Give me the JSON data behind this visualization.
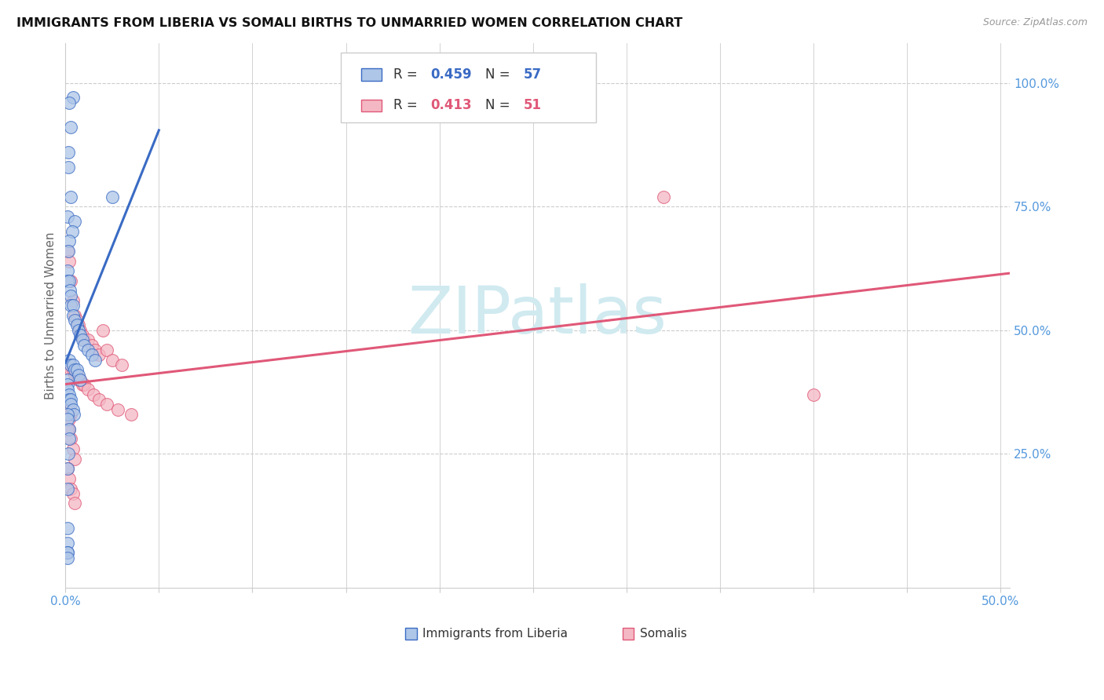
{
  "title": "IMMIGRANTS FROM LIBERIA VS SOMALI BIRTHS TO UNMARRIED WOMEN CORRELATION CHART",
  "source": "Source: ZipAtlas.com",
  "ylabel": "Births to Unmarried Women",
  "legend_label1": "Immigrants from Liberia",
  "legend_label2": "Somalis",
  "color_blue": "#aec6e8",
  "color_pink": "#f4b8c4",
  "color_blue_line": "#3a6bc4",
  "color_pink_line": "#e05878",
  "watermark_text": "ZIPatlas",
  "watermark_color": "#d0eaf0",
  "xlim": [
    0.0,
    0.505
  ],
  "ylim": [
    -0.02,
    1.08
  ],
  "ytick_positions": [
    0.0,
    0.25,
    0.5,
    0.75,
    1.0
  ],
  "ytick_labels_right": [
    "",
    "25.0%",
    "50.0%",
    "75.0%",
    "100.0%"
  ],
  "xtick_positions": [
    0.0,
    0.05,
    0.1,
    0.15,
    0.2,
    0.25,
    0.3,
    0.35,
    0.4,
    0.45,
    0.5
  ],
  "xtick_show": [
    0.0,
    0.5
  ],
  "blue_x": [
    0.004,
    0.002,
    0.003,
    0.0015,
    0.0015,
    0.003,
    0.025,
    0.001,
    0.005,
    0.0035,
    0.002,
    0.0015,
    0.001,
    0.001,
    0.002,
    0.0025,
    0.003,
    0.003,
    0.004,
    0.004,
    0.005,
    0.006,
    0.007,
    0.008,
    0.009,
    0.01,
    0.012,
    0.014,
    0.016,
    0.002,
    0.003,
    0.004,
    0.005,
    0.006,
    0.007,
    0.008,
    0.001,
    0.001,
    0.001,
    0.002,
    0.002,
    0.003,
    0.003,
    0.004,
    0.0045,
    0.001,
    0.001,
    0.002,
    0.002,
    0.0015,
    0.001,
    0.001,
    0.001,
    0.001,
    0.001,
    0.001,
    0.001
  ],
  "blue_y": [
    0.97,
    0.96,
    0.91,
    0.86,
    0.83,
    0.77,
    0.77,
    0.73,
    0.72,
    0.7,
    0.68,
    0.66,
    0.62,
    0.6,
    0.6,
    0.58,
    0.57,
    0.55,
    0.55,
    0.53,
    0.52,
    0.51,
    0.5,
    0.49,
    0.48,
    0.47,
    0.46,
    0.45,
    0.44,
    0.44,
    0.43,
    0.43,
    0.42,
    0.42,
    0.41,
    0.4,
    0.4,
    0.39,
    0.38,
    0.37,
    0.36,
    0.36,
    0.35,
    0.34,
    0.33,
    0.33,
    0.32,
    0.3,
    0.28,
    0.25,
    0.22,
    0.18,
    0.1,
    0.07,
    0.05,
    0.05,
    0.04
  ],
  "pink_x": [
    0.32,
    0.4,
    0.001,
    0.002,
    0.003,
    0.004,
    0.005,
    0.006,
    0.007,
    0.008,
    0.009,
    0.01,
    0.012,
    0.014,
    0.016,
    0.018,
    0.02,
    0.022,
    0.025,
    0.03,
    0.002,
    0.003,
    0.004,
    0.005,
    0.006,
    0.007,
    0.008,
    0.009,
    0.01,
    0.012,
    0.015,
    0.018,
    0.022,
    0.028,
    0.035,
    0.001,
    0.002,
    0.003,
    0.004,
    0.005,
    0.001,
    0.002,
    0.003,
    0.004,
    0.005,
    0.001,
    0.001,
    0.002,
    0.003,
    0.002,
    0.001
  ],
  "pink_y": [
    0.77,
    0.37,
    0.66,
    0.64,
    0.6,
    0.56,
    0.53,
    0.52,
    0.51,
    0.5,
    0.49,
    0.48,
    0.48,
    0.47,
    0.46,
    0.45,
    0.5,
    0.46,
    0.44,
    0.43,
    0.43,
    0.42,
    0.42,
    0.41,
    0.41,
    0.4,
    0.4,
    0.39,
    0.39,
    0.38,
    0.37,
    0.36,
    0.35,
    0.34,
    0.33,
    0.33,
    0.3,
    0.28,
    0.26,
    0.24,
    0.22,
    0.2,
    0.18,
    0.17,
    0.15,
    0.36,
    0.35,
    0.34,
    0.33,
    0.32,
    0.3
  ],
  "blue_line_x": [
    0.0,
    0.05
  ],
  "blue_line_y_intercept": 0.34,
  "blue_line_slope": 14.0,
  "pink_line_x": [
    0.0,
    0.505
  ],
  "pink_line_y_intercept": 0.365,
  "pink_line_slope": 0.32
}
